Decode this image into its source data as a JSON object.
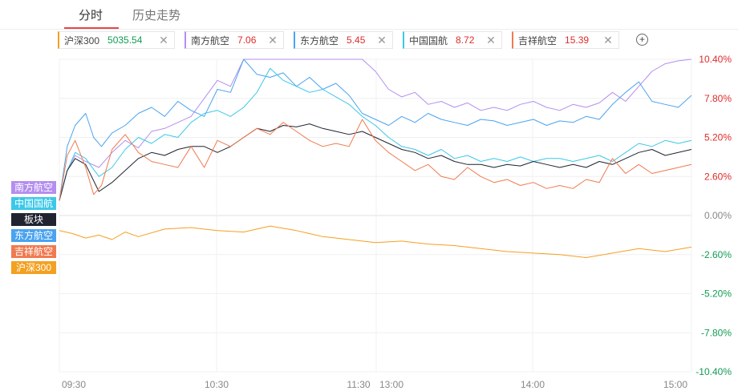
{
  "tabs": {
    "active": "分时",
    "inactive": "历史走势"
  },
  "chips": [
    {
      "name": "沪深300",
      "value": "5035.54",
      "accent": "#f4a020",
      "value_color": "#119c53"
    },
    {
      "name": "南方航空",
      "value": "7.06",
      "accent": "#b48ef0",
      "value_color": "#e02b2b"
    },
    {
      "name": "东方航空",
      "value": "5.45",
      "accent": "#4aa3f0",
      "value_color": "#e02b2b"
    },
    {
      "name": "中国国航",
      "value": "8.72",
      "accent": "#3cc8e8",
      "value_color": "#e02b2b"
    },
    {
      "name": "吉祥航空",
      "value": "15.39",
      "accent": "#f07a50",
      "value_color": "#e02b2b"
    }
  ],
  "add_icon": "plus-circle-icon",
  "close_icon": "close-x-icon",
  "legend": [
    {
      "label": "南方航空",
      "color": "#b48ef0"
    },
    {
      "label": "中国国航",
      "color": "#3cc8e8"
    },
    {
      "label": "板块",
      "color": "#1f2430"
    },
    {
      "label": "东方航空",
      "color": "#4aa3f0"
    },
    {
      "label": "吉祥航空",
      "color": "#f07a50"
    },
    {
      "label": "沪深300",
      "color": "#f4a020"
    }
  ],
  "chart_data": {
    "type": "line",
    "title": "",
    "xlabel": "",
    "ylabel": "",
    "x_ticks": [
      "09:30",
      "10:30",
      "11:30",
      "13:00",
      "14:00",
      "15:00"
    ],
    "y_ticks": [
      "10.40%",
      "7.80%",
      "5.20%",
      "2.60%",
      "0.00%",
      "-2.60%",
      "-5.20%",
      "-7.80%",
      "-10.40%"
    ],
    "ylim": [
      -10.4,
      10.4
    ],
    "zero_color": "#888888",
    "positive_color": "#e02b2b",
    "negative_color": "#119c53",
    "x_unit": "minutes_since_open",
    "xlim": [
      0,
      240
    ],
    "series": [
      {
        "name": "沪深300",
        "color": "#f4a020",
        "x": [
          0,
          5,
          10,
          15,
          20,
          25,
          30,
          40,
          50,
          60,
          70,
          80,
          90,
          100,
          110,
          120,
          130,
          140,
          150,
          160,
          170,
          180,
          190,
          200,
          210,
          220,
          230,
          240
        ],
        "values": [
          -1.0,
          -1.2,
          -1.5,
          -1.3,
          -1.6,
          -1.1,
          -1.4,
          -0.9,
          -0.8,
          -1.0,
          -1.1,
          -0.7,
          -1.0,
          -1.4,
          -1.6,
          -1.8,
          -1.7,
          -1.9,
          -2.0,
          -2.2,
          -2.4,
          -2.5,
          -2.6,
          -2.8,
          -2.5,
          -2.2,
          -2.4,
          -2.1
        ]
      },
      {
        "name": "南方航空",
        "color": "#b48ef0",
        "x": [
          0,
          3,
          6,
          10,
          15,
          20,
          25,
          30,
          35,
          40,
          45,
          50,
          55,
          60,
          65,
          70,
          75,
          80,
          85,
          90,
          95,
          100,
          105,
          110,
          115,
          120,
          125,
          130,
          135,
          140,
          145,
          150,
          155,
          160,
          165,
          170,
          175,
          180,
          185,
          190,
          195,
          200,
          205,
          210,
          215,
          220,
          225,
          230,
          235,
          240
        ],
        "values": [
          1.0,
          3.0,
          4.0,
          3.6,
          3.2,
          4.2,
          5.0,
          4.5,
          5.6,
          5.8,
          6.2,
          6.6,
          7.8,
          9.0,
          8.6,
          10.4,
          10.4,
          10.4,
          10.4,
          10.4,
          10.4,
          10.4,
          10.4,
          10.4,
          10.4,
          9.6,
          8.4,
          7.9,
          8.2,
          7.4,
          7.6,
          7.2,
          7.5,
          7.0,
          7.2,
          7.0,
          7.4,
          7.6,
          7.2,
          7.0,
          7.4,
          7.2,
          7.5,
          8.2,
          7.6,
          8.6,
          9.6,
          10.1,
          10.3,
          10.4
        ]
      },
      {
        "name": "东方航空",
        "color": "#4aa3f0",
        "x": [
          0,
          3,
          6,
          10,
          13,
          16,
          20,
          25,
          30,
          35,
          40,
          45,
          50,
          55,
          60,
          65,
          70,
          75,
          80,
          85,
          90,
          95,
          100,
          105,
          110,
          115,
          120,
          125,
          130,
          135,
          140,
          145,
          150,
          155,
          160,
          165,
          170,
          175,
          180,
          185,
          190,
          195,
          200,
          205,
          210,
          215,
          220,
          225,
          230,
          235,
          240
        ],
        "values": [
          1.0,
          4.6,
          6.0,
          6.8,
          5.2,
          4.6,
          5.5,
          6.0,
          6.8,
          7.2,
          6.6,
          7.6,
          7.0,
          6.6,
          8.4,
          8.2,
          10.4,
          9.4,
          9.2,
          9.5,
          8.6,
          9.2,
          8.4,
          8.8,
          8.0,
          6.8,
          6.4,
          6.0,
          6.6,
          6.2,
          6.8,
          6.4,
          6.2,
          6.0,
          6.4,
          6.3,
          6.0,
          6.2,
          6.4,
          6.0,
          6.3,
          6.2,
          6.6,
          6.4,
          7.4,
          8.2,
          8.9,
          7.6,
          7.4,
          7.2,
          8.0
        ]
      },
      {
        "name": "中国国航",
        "color": "#3cc8e8",
        "x": [
          0,
          3,
          6,
          10,
          15,
          20,
          25,
          30,
          35,
          40,
          45,
          50,
          55,
          60,
          65,
          70,
          75,
          80,
          85,
          90,
          95,
          100,
          105,
          110,
          115,
          120,
          125,
          130,
          135,
          140,
          145,
          150,
          155,
          160,
          165,
          170,
          175,
          180,
          185,
          190,
          195,
          200,
          205,
          210,
          215,
          220,
          225,
          230,
          235,
          240
        ],
        "values": [
          1.0,
          3.0,
          4.2,
          3.8,
          2.6,
          3.2,
          4.4,
          5.2,
          4.8,
          5.4,
          5.2,
          6.2,
          6.8,
          7.0,
          6.6,
          7.2,
          8.2,
          9.8,
          9.0,
          8.6,
          8.2,
          8.4,
          7.9,
          7.4,
          6.6,
          6.0,
          5.2,
          4.6,
          4.4,
          4.0,
          4.4,
          3.8,
          4.0,
          3.6,
          3.8,
          3.6,
          3.9,
          3.6,
          3.8,
          3.8,
          3.6,
          3.8,
          4.0,
          3.6,
          4.2,
          4.8,
          4.6,
          5.0,
          4.8,
          5.0
        ]
      },
      {
        "name": "板块",
        "color": "#1f2430",
        "x": [
          0,
          3,
          6,
          10,
          15,
          20,
          25,
          30,
          35,
          40,
          45,
          50,
          55,
          60,
          65,
          70,
          75,
          80,
          85,
          90,
          95,
          100,
          105,
          110,
          115,
          120,
          125,
          130,
          135,
          140,
          145,
          150,
          155,
          160,
          165,
          170,
          175,
          180,
          185,
          190,
          195,
          200,
          205,
          210,
          215,
          220,
          225,
          230,
          235,
          240
        ],
        "values": [
          1.0,
          3.0,
          3.8,
          3.4,
          1.6,
          2.2,
          3.0,
          3.8,
          4.2,
          4.0,
          4.4,
          4.6,
          4.6,
          4.2,
          4.6,
          5.2,
          5.8,
          5.6,
          6.0,
          5.9,
          6.1,
          5.8,
          5.6,
          5.4,
          5.6,
          5.2,
          4.8,
          4.4,
          4.2,
          3.8,
          4.0,
          3.6,
          3.4,
          3.4,
          3.2,
          3.4,
          3.3,
          3.6,
          3.4,
          3.2,
          3.4,
          3.2,
          3.6,
          3.4,
          3.8,
          4.2,
          4.4,
          4.0,
          4.2,
          4.4
        ]
      },
      {
        "name": "吉祥航空",
        "color": "#f07a50",
        "x": [
          0,
          3,
          6,
          10,
          13,
          16,
          20,
          25,
          30,
          35,
          40,
          45,
          50,
          55,
          60,
          65,
          70,
          75,
          80,
          85,
          90,
          95,
          100,
          105,
          110,
          115,
          120,
          125,
          130,
          135,
          140,
          145,
          150,
          155,
          160,
          165,
          170,
          175,
          180,
          185,
          190,
          195,
          200,
          205,
          210,
          215,
          220,
          225,
          230,
          235,
          240
        ],
        "values": [
          1.0,
          4.0,
          5.0,
          3.2,
          1.4,
          2.0,
          4.4,
          5.4,
          4.2,
          3.6,
          3.4,
          3.2,
          4.6,
          3.2,
          5.0,
          4.6,
          5.2,
          5.8,
          5.4,
          6.2,
          5.6,
          5.0,
          4.6,
          4.8,
          4.6,
          6.4,
          5.0,
          4.2,
          3.6,
          3.0,
          3.4,
          2.6,
          2.4,
          3.2,
          2.6,
          2.2,
          2.4,
          2.0,
          2.2,
          1.8,
          2.0,
          1.8,
          2.4,
          2.2,
          3.8,
          2.8,
          3.4,
          2.8,
          3.0,
          3.2,
          3.4
        ]
      }
    ]
  }
}
